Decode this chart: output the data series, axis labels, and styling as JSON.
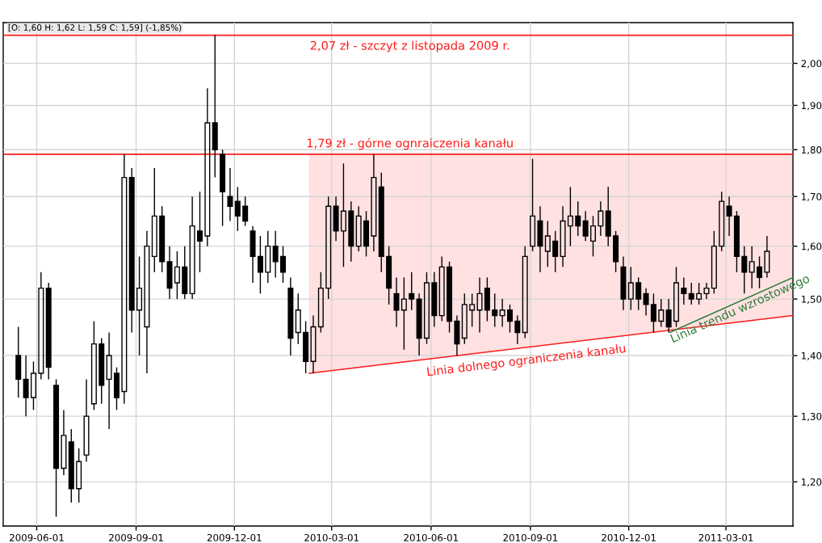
{
  "chart_data": {
    "type": "candlestick",
    "color": "#000000",
    "x": [
      "2009-05-15",
      "2009-05-22",
      "2009-05-29",
      "2009-06-05",
      "2009-06-12",
      "2009-06-19",
      "2009-06-26",
      "2009-07-03",
      "2009-07-10",
      "2009-07-17",
      "2009-07-24",
      "2009-07-31",
      "2009-08-07",
      "2009-08-14",
      "2009-08-21",
      "2009-08-28",
      "2009-09-04",
      "2009-09-11",
      "2009-09-18",
      "2009-09-25",
      "2009-10-02",
      "2009-10-09",
      "2009-10-16",
      "2009-10-23",
      "2009-10-30",
      "2009-11-06",
      "2009-11-13",
      "2009-11-20",
      "2009-11-27",
      "2009-12-04",
      "2009-12-11",
      "2009-12-18",
      "2009-12-25",
      "2010-01-01",
      "2010-01-08",
      "2010-01-15",
      "2010-01-22",
      "2010-01-29",
      "2010-02-05",
      "2010-02-12",
      "2010-02-19",
      "2010-02-26",
      "2010-03-05",
      "2010-03-12",
      "2010-03-19",
      "2010-03-26",
      "2010-04-02",
      "2010-04-09",
      "2010-04-16",
      "2010-04-23",
      "2010-04-30",
      "2010-05-07",
      "2010-05-14",
      "2010-05-21",
      "2010-05-28",
      "2010-06-04",
      "2010-06-11",
      "2010-06-18",
      "2010-06-25",
      "2010-07-02",
      "2010-07-09",
      "2010-07-16",
      "2010-07-23",
      "2010-07-30",
      "2010-08-06",
      "2010-08-13",
      "2010-08-20",
      "2010-08-27",
      "2010-09-03",
      "2010-09-10",
      "2010-09-17",
      "2010-09-24",
      "2010-10-01",
      "2010-10-08",
      "2010-10-15",
      "2010-10-22",
      "2010-10-29",
      "2010-11-05",
      "2010-11-12",
      "2010-11-19",
      "2010-11-26",
      "2010-12-03",
      "2010-12-10",
      "2010-12-17",
      "2010-12-24",
      "2010-12-31",
      "2011-01-07",
      "2011-01-14",
      "2011-01-21",
      "2011-01-28",
      "2011-02-04",
      "2011-02-11",
      "2011-02-18",
      "2011-02-25",
      "2011-03-04",
      "2011-03-11",
      "2011-03-18",
      "2011-03-25",
      "2011-04-01",
      "2011-04-08"
    ],
    "ohlc": [
      [
        1.4,
        1.45,
        1.33,
        1.36
      ],
      [
        1.36,
        1.4,
        1.3,
        1.33
      ],
      [
        1.33,
        1.39,
        1.31,
        1.37
      ],
      [
        1.37,
        1.55,
        1.36,
        1.52
      ],
      [
        1.52,
        1.53,
        1.36,
        1.38
      ],
      [
        1.35,
        1.36,
        1.15,
        1.22
      ],
      [
        1.22,
        1.31,
        1.21,
        1.27
      ],
      [
        1.26,
        1.28,
        1.17,
        1.19
      ],
      [
        1.19,
        1.25,
        1.17,
        1.23
      ],
      [
        1.24,
        1.36,
        1.23,
        1.3
      ],
      [
        1.32,
        1.46,
        1.31,
        1.42
      ],
      [
        1.42,
        1.43,
        1.32,
        1.35
      ],
      [
        1.36,
        1.44,
        1.28,
        1.4
      ],
      [
        1.37,
        1.38,
        1.31,
        1.33
      ],
      [
        1.34,
        1.79,
        1.32,
        1.74
      ],
      [
        1.74,
        1.76,
        1.44,
        1.48
      ],
      [
        1.48,
        1.58,
        1.4,
        1.52
      ],
      [
        1.45,
        1.63,
        1.37,
        1.6
      ],
      [
        1.58,
        1.76,
        1.55,
        1.66
      ],
      [
        1.66,
        1.68,
        1.55,
        1.57
      ],
      [
        1.57,
        1.6,
        1.5,
        1.52
      ],
      [
        1.53,
        1.59,
        1.5,
        1.56
      ],
      [
        1.56,
        1.6,
        1.5,
        1.51
      ],
      [
        1.51,
        1.7,
        1.5,
        1.64
      ],
      [
        1.63,
        1.71,
        1.55,
        1.61
      ],
      [
        1.62,
        1.94,
        1.6,
        1.86
      ],
      [
        1.86,
        2.07,
        1.74,
        1.8
      ],
      [
        1.79,
        1.8,
        1.64,
        1.71
      ],
      [
        1.7,
        1.76,
        1.65,
        1.68
      ],
      [
        1.69,
        1.72,
        1.63,
        1.66
      ],
      [
        1.68,
        1.7,
        1.64,
        1.65
      ],
      [
        1.63,
        1.64,
        1.53,
        1.58
      ],
      [
        1.58,
        1.62,
        1.51,
        1.55
      ],
      [
        1.55,
        1.63,
        1.53,
        1.6
      ],
      [
        1.6,
        1.63,
        1.54,
        1.57
      ],
      [
        1.58,
        1.6,
        1.53,
        1.55
      ],
      [
        1.52,
        1.54,
        1.4,
        1.43
      ],
      [
        1.44,
        1.51,
        1.42,
        1.48
      ],
      [
        1.44,
        1.46,
        1.37,
        1.39
      ],
      [
        1.39,
        1.47,
        1.37,
        1.45
      ],
      [
        1.45,
        1.55,
        1.44,
        1.52
      ],
      [
        1.52,
        1.7,
        1.5,
        1.68
      ],
      [
        1.68,
        1.7,
        1.61,
        1.63
      ],
      [
        1.63,
        1.77,
        1.56,
        1.67
      ],
      [
        1.67,
        1.69,
        1.57,
        1.6
      ],
      [
        1.6,
        1.68,
        1.59,
        1.66
      ],
      [
        1.65,
        1.67,
        1.58,
        1.6
      ],
      [
        1.62,
        1.79,
        1.59,
        1.74
      ],
      [
        1.72,
        1.75,
        1.55,
        1.58
      ],
      [
        1.58,
        1.6,
        1.49,
        1.52
      ],
      [
        1.51,
        1.54,
        1.45,
        1.48
      ],
      [
        1.48,
        1.54,
        1.41,
        1.5
      ],
      [
        1.51,
        1.55,
        1.48,
        1.5
      ],
      [
        1.5,
        1.51,
        1.4,
        1.43
      ],
      [
        1.43,
        1.55,
        1.42,
        1.53
      ],
      [
        1.53,
        1.55,
        1.45,
        1.47
      ],
      [
        1.47,
        1.58,
        1.46,
        1.56
      ],
      [
        1.56,
        1.57,
        1.44,
        1.46
      ],
      [
        1.46,
        1.47,
        1.4,
        1.42
      ],
      [
        1.43,
        1.51,
        1.42,
        1.49
      ],
      [
        1.48,
        1.51,
        1.45,
        1.49
      ],
      [
        1.48,
        1.54,
        1.44,
        1.51
      ],
      [
        1.52,
        1.54,
        1.46,
        1.48
      ],
      [
        1.48,
        1.51,
        1.45,
        1.47
      ],
      [
        1.47,
        1.5,
        1.45,
        1.48
      ],
      [
        1.48,
        1.49,
        1.44,
        1.46
      ],
      [
        1.46,
        1.47,
        1.42,
        1.44
      ],
      [
        1.44,
        1.6,
        1.43,
        1.58
      ],
      [
        1.6,
        1.78,
        1.59,
        1.66
      ],
      [
        1.65,
        1.68,
        1.55,
        1.6
      ],
      [
        1.59,
        1.65,
        1.56,
        1.62
      ],
      [
        1.61,
        1.63,
        1.55,
        1.58
      ],
      [
        1.58,
        1.68,
        1.56,
        1.65
      ],
      [
        1.64,
        1.72,
        1.6,
        1.66
      ],
      [
        1.66,
        1.69,
        1.62,
        1.64
      ],
      [
        1.65,
        1.67,
        1.61,
        1.62
      ],
      [
        1.61,
        1.66,
        1.58,
        1.64
      ],
      [
        1.64,
        1.69,
        1.62,
        1.67
      ],
      [
        1.67,
        1.72,
        1.6,
        1.62
      ],
      [
        1.62,
        1.63,
        1.55,
        1.57
      ],
      [
        1.56,
        1.58,
        1.48,
        1.5
      ],
      [
        1.5,
        1.56,
        1.48,
        1.53
      ],
      [
        1.53,
        1.54,
        1.48,
        1.5
      ],
      [
        1.51,
        1.52,
        1.47,
        1.49
      ],
      [
        1.49,
        1.51,
        1.44,
        1.46
      ],
      [
        1.46,
        1.5,
        1.45,
        1.48
      ],
      [
        1.48,
        1.5,
        1.44,
        1.45
      ],
      [
        1.46,
        1.56,
        1.45,
        1.53
      ],
      [
        1.52,
        1.54,
        1.49,
        1.51
      ],
      [
        1.51,
        1.53,
        1.49,
        1.5
      ],
      [
        1.5,
        1.53,
        1.49,
        1.51
      ],
      [
        1.51,
        1.53,
        1.5,
        1.52
      ],
      [
        1.52,
        1.63,
        1.51,
        1.6
      ],
      [
        1.6,
        1.71,
        1.59,
        1.69
      ],
      [
        1.68,
        1.7,
        1.62,
        1.66
      ],
      [
        1.66,
        1.67,
        1.55,
        1.58
      ],
      [
        1.58,
        1.6,
        1.51,
        1.55
      ],
      [
        1.55,
        1.6,
        1.52,
        1.57
      ],
      [
        1.56,
        1.58,
        1.52,
        1.54
      ],
      [
        1.55,
        1.62,
        1.54,
        1.59
      ]
    ],
    "series": [
      {
        "type": "line",
        "x": [
          "2010-02-08",
          "2011-05-02"
        ],
        "values": [
          1.37,
          1.47
        ],
        "lower": [
          1.37,
          1.47
        ],
        "upper": [
          1.79,
          1.79
        ],
        "color": "#ff1a1a"
      },
      {
        "type": "line",
        "x": [
          "2011-01-08",
          "2011-05-02"
        ],
        "values": [
          1.44,
          1.54
        ],
        "color": "#2e7d3a"
      }
    ],
    "ref_lines": [
      {
        "axis": "y",
        "value": 2.07,
        "label": "2,07 zł - szczyt z listopada 2009 r.",
        "color": "#ff1a1a"
      },
      {
        "axis": "y",
        "value": 1.79,
        "label": "1,79 zł - górne ognraiczenia kanału",
        "color": "#ff1a1a"
      }
    ],
    "annotations": [
      "[O: 1,60 H: 1,62 L: 1,59 C: 1,59] (-1,85%)",
      {
        "text": "Linia dolnego ograniczenia kanału",
        "x": "2010-08-27",
        "y": 1.41
      },
      {
        "text": "Linia trendu wzrostowego",
        "x": "2011-03-10",
        "y": 1.5
      }
    ],
    "xlim": [
      "2009-05-01",
      "2011-05-02"
    ],
    "xticks": [
      "2009-06-01",
      "2009-09-01",
      "2009-12-01",
      "2010-03-01",
      "2010-06-01",
      "2010-09-01",
      "2010-12-01",
      "2011-03-01"
    ],
    "ylim": [
      1.137,
      2.102
    ],
    "yticks": [
      {
        "value": 1.2,
        "label": "1,20"
      },
      {
        "value": 1.3,
        "label": "1,30"
      },
      {
        "value": 1.4,
        "label": "1,40"
      },
      {
        "value": 1.5,
        "label": "1,50"
      },
      {
        "value": 1.6,
        "label": "1,60"
      },
      {
        "value": 1.7,
        "label": "1,70"
      },
      {
        "value": 1.8,
        "label": "1,80"
      },
      {
        "value": 1.9,
        "label": "1,90"
      },
      {
        "value": 2.0,
        "label": "2,00"
      }
    ],
    "log": true,
    "grid": true
  }
}
